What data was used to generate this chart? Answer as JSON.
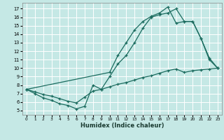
{
  "xlabel": "Humidex (Indice chaleur)",
  "bg_color": "#c5e8e5",
  "line_color": "#1a6b5e",
  "grid_color": "#ffffff",
  "xlim": [
    -0.5,
    23.5
  ],
  "ylim": [
    4.5,
    17.7
  ],
  "yticks": [
    5,
    6,
    7,
    8,
    9,
    10,
    11,
    12,
    13,
    14,
    15,
    16,
    17
  ],
  "xticks": [
    0,
    1,
    2,
    3,
    4,
    5,
    6,
    7,
    8,
    9,
    10,
    11,
    12,
    13,
    14,
    15,
    16,
    17,
    18,
    19,
    20,
    21,
    22,
    23
  ],
  "line_diag_x": [
    0,
    1,
    2,
    3,
    4,
    5,
    6,
    7,
    8,
    9,
    10,
    11,
    12,
    13,
    14,
    15,
    16,
    17,
    18,
    19,
    20,
    21,
    22,
    23
  ],
  "line_diag_y": [
    7.5,
    7.2,
    6.9,
    6.7,
    6.4,
    6.1,
    5.9,
    6.6,
    7.3,
    7.5,
    7.8,
    8.1,
    8.3,
    8.6,
    8.9,
    9.1,
    9.4,
    9.7,
    9.9,
    9.5,
    9.7,
    9.8,
    9.9,
    10.0
  ],
  "line_mid_x": [
    0,
    1,
    2,
    3,
    4,
    5,
    6,
    7,
    8,
    9,
    10,
    11,
    12,
    13,
    14,
    15,
    16,
    17,
    18,
    19,
    20,
    21,
    22,
    23
  ],
  "line_mid_y": [
    7.5,
    7.0,
    6.5,
    6.2,
    5.8,
    5.6,
    5.2,
    5.5,
    8.0,
    7.5,
    9.0,
    10.5,
    11.5,
    13.0,
    14.7,
    16.0,
    16.3,
    16.5,
    17.0,
    15.5,
    15.5,
    13.5,
    11.0,
    10.0
  ],
  "line_top_x": [
    0,
    10,
    11,
    12,
    13,
    14,
    15,
    16,
    17,
    18,
    19,
    20,
    21,
    22,
    23
  ],
  "line_top_y": [
    7.5,
    9.5,
    11.5,
    13.0,
    14.5,
    15.5,
    16.1,
    16.5,
    17.2,
    15.3,
    15.5,
    15.5,
    13.5,
    11.2,
    10.0
  ]
}
